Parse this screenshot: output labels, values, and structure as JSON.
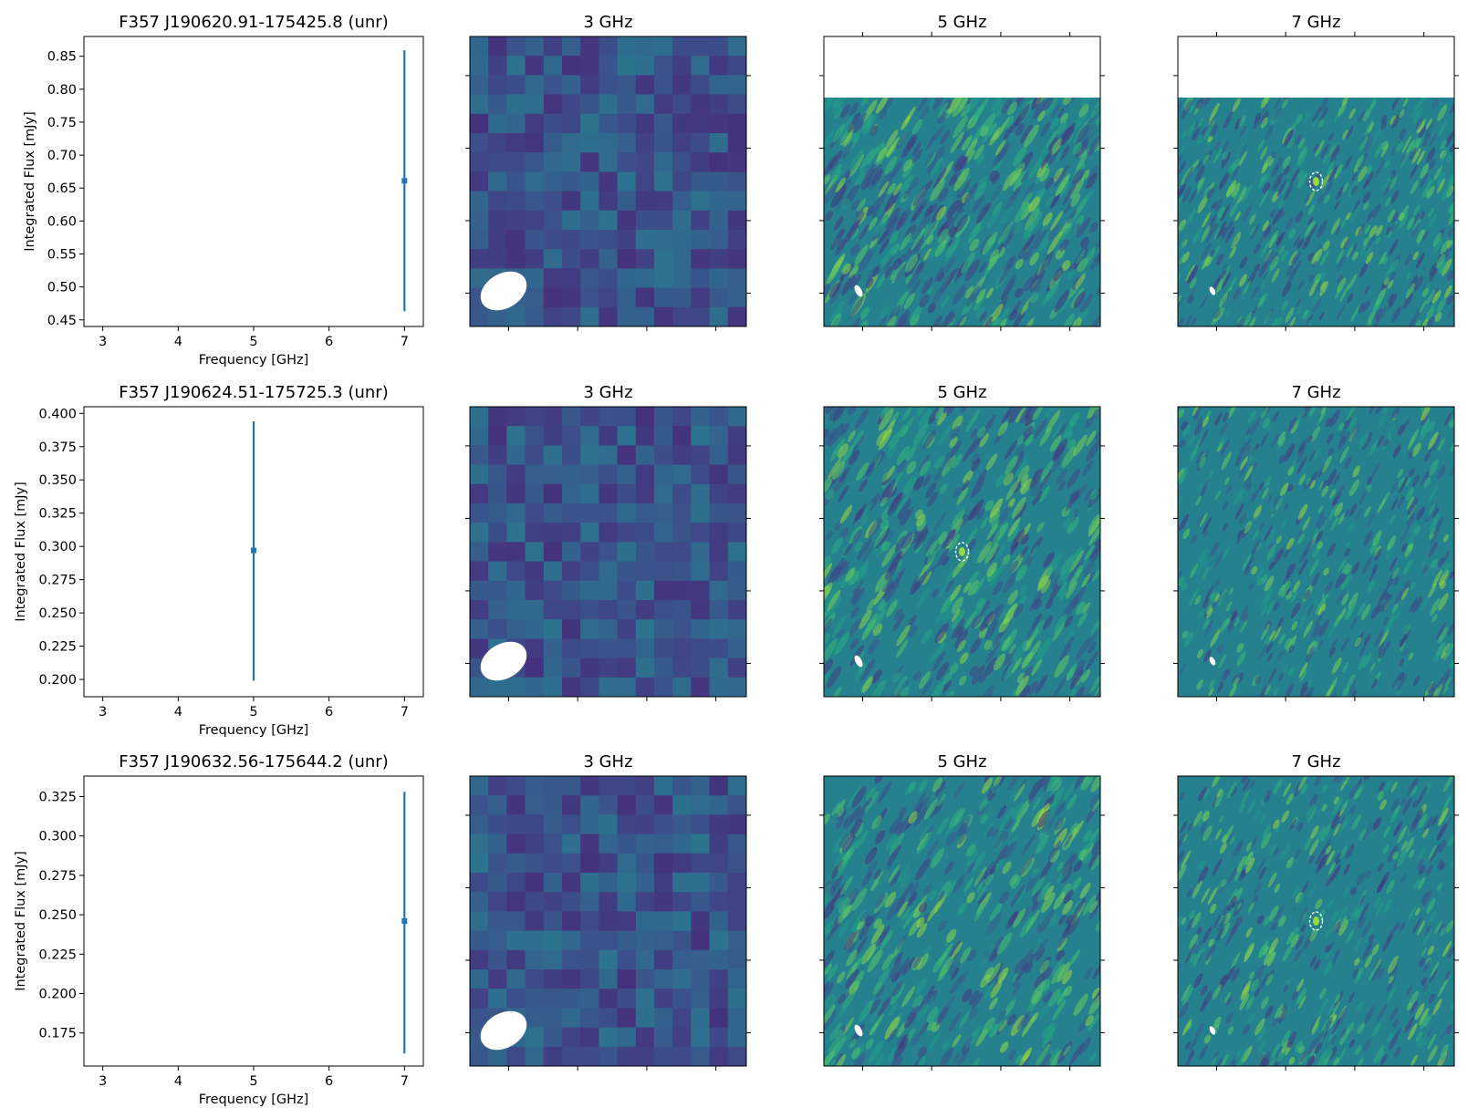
{
  "colors": {
    "series": "#1f77b4",
    "beam": "#ffffff",
    "ring": "#ffffff"
  },
  "panels": [
    {
      "spectrum": {
        "type": "scatter",
        "title": "F357 J190620.91-175425.8 (unr)",
        "xlabel": "Frequency [GHz]",
        "ylabel": "Integrated Flux [mJy]",
        "xlim": [
          2.75,
          7.25
        ],
        "ylim": [
          0.44,
          0.88
        ],
        "xticks": [
          3,
          4,
          5,
          6,
          7
        ],
        "yticks": [
          0.45,
          0.5,
          0.55,
          0.6,
          0.65,
          0.7,
          0.75,
          0.8,
          0.85
        ],
        "ytick_labels": [
          "0.45",
          "0.50",
          "0.55",
          "0.60",
          "0.65",
          "0.70",
          "0.75",
          "0.80",
          "0.85"
        ],
        "points": [
          {
            "x": 7,
            "y": 0.661,
            "yerr_low": 0.463,
            "yerr_high": 0.859
          }
        ]
      },
      "images": [
        {
          "title": "3 GHz",
          "kind": "pixelated",
          "blank_top": 0,
          "beam": true,
          "source_ring": false
        },
        {
          "title": "5 GHz",
          "kind": "noise",
          "blank_top": 0.21,
          "beam": true,
          "source_ring": false
        },
        {
          "title": "7 GHz",
          "kind": "noise",
          "blank_top": 0.21,
          "beam": true,
          "source_ring": true
        }
      ]
    },
    {
      "spectrum": {
        "type": "scatter",
        "title": "F357 J190624.51-175725.3 (unr)",
        "xlabel": "Frequency [GHz]",
        "ylabel": "Integrated Flux [mJy]",
        "xlim": [
          2.75,
          7.25
        ],
        "ylim": [
          0.187,
          0.405
        ],
        "xticks": [
          3,
          4,
          5,
          6,
          7
        ],
        "yticks": [
          0.2,
          0.225,
          0.25,
          0.275,
          0.3,
          0.325,
          0.35,
          0.375,
          0.4
        ],
        "ytick_labels": [
          "0.200",
          "0.225",
          "0.250",
          "0.275",
          "0.300",
          "0.325",
          "0.350",
          "0.375",
          "0.400"
        ],
        "points": [
          {
            "x": 5,
            "y": 0.297,
            "yerr_low": 0.199,
            "yerr_high": 0.394
          }
        ]
      },
      "images": [
        {
          "title": "3 GHz",
          "kind": "pixelated",
          "blank_top": 0,
          "beam": true,
          "source_ring": false
        },
        {
          "title": "5 GHz",
          "kind": "noise",
          "blank_top": 0,
          "beam": true,
          "source_ring": true
        },
        {
          "title": "7 GHz",
          "kind": "noise",
          "blank_top": 0,
          "beam": true,
          "source_ring": false
        }
      ]
    },
    {
      "spectrum": {
        "type": "scatter",
        "title": "F357 J190632.56-175644.2 (unr)",
        "xlabel": "Frequency [GHz]",
        "ylabel": "Integrated Flux [mJy]",
        "xlim": [
          2.75,
          7.25
        ],
        "ylim": [
          0.154,
          0.338
        ],
        "xticks": [
          3,
          4,
          5,
          6,
          7
        ],
        "yticks": [
          0.175,
          0.2,
          0.225,
          0.25,
          0.275,
          0.3,
          0.325
        ],
        "ytick_labels": [
          "0.175",
          "0.200",
          "0.225",
          "0.250",
          "0.275",
          "0.300",
          "0.325"
        ],
        "points": [
          {
            "x": 7,
            "y": 0.246,
            "yerr_low": 0.162,
            "yerr_high": 0.328
          }
        ]
      },
      "images": [
        {
          "title": "3 GHz",
          "kind": "pixelated",
          "blank_top": 0,
          "beam": true,
          "source_ring": false
        },
        {
          "title": "5 GHz",
          "kind": "noise",
          "blank_top": 0,
          "beam": true,
          "source_ring": false
        },
        {
          "title": "7 GHz",
          "kind": "noise",
          "blank_top": 0,
          "beam": true,
          "source_ring": true
        }
      ]
    }
  ],
  "chart_data": [
    {
      "type": "scatter",
      "title": "F357 J190620.91-175425.8 (unr)",
      "xlabel": "Frequency [GHz]",
      "ylabel": "Integrated Flux [mJy]",
      "xlim": [
        2.75,
        7.25
      ],
      "ylim": [
        0.44,
        0.88
      ],
      "series": [
        {
          "x": [
            7
          ],
          "y": [
            0.661
          ],
          "yerr_low": [
            0.463
          ],
          "yerr_high": [
            0.859
          ]
        }
      ]
    },
    {
      "type": "scatter",
      "title": "F357 J190624.51-175725.3 (unr)",
      "xlabel": "Frequency [GHz]",
      "ylabel": "Integrated Flux [mJy]",
      "xlim": [
        2.75,
        7.25
      ],
      "ylim": [
        0.187,
        0.405
      ],
      "series": [
        {
          "x": [
            5
          ],
          "y": [
            0.297
          ],
          "yerr_low": [
            0.199
          ],
          "yerr_high": [
            0.394
          ]
        }
      ]
    },
    {
      "type": "scatter",
      "title": "F357 J190632.56-175644.2 (unr)",
      "xlabel": "Frequency [GHz]",
      "ylabel": "Integrated Flux [mJy]",
      "xlim": [
        2.75,
        7.25
      ],
      "ylim": [
        0.154,
        0.338
      ],
      "series": [
        {
          "x": [
            7
          ],
          "y": [
            0.246
          ],
          "yerr_low": [
            0.162
          ],
          "yerr_high": [
            0.328
          ]
        }
      ]
    }
  ]
}
